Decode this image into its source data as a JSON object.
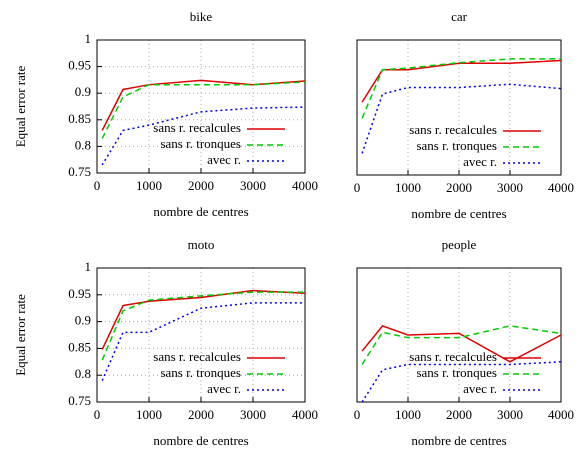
{
  "chart_data": [
    {
      "type": "line",
      "title": "bike",
      "xlabel": "nombre de centres",
      "ylabel": "Equal error rate",
      "x": [
        100,
        500,
        1000,
        2000,
        3000,
        4000
      ],
      "xlim": [
        0,
        4000
      ],
      "xticks": [
        0,
        1000,
        2000,
        3000,
        4000
      ],
      "ylim": [
        0.75,
        1
      ],
      "yticks": [
        0.75,
        0.8,
        0.85,
        0.9,
        0.95,
        1
      ],
      "grid": true,
      "legend": "lower right",
      "series": [
        {
          "name": "sans r. recalcules",
          "color": "#e00000",
          "style": "solid",
          "values": [
            0.83,
            0.907,
            0.916,
            0.924,
            0.916,
            0.923
          ]
        },
        {
          "name": "sans r. tronques",
          "color": "#00cc00",
          "style": "dashed",
          "values": [
            0.815,
            0.893,
            0.916,
            0.916,
            0.916,
            0.921
          ]
        },
        {
          "name": "avec r.",
          "color": "#0000ee",
          "style": "dotted",
          "values": [
            0.765,
            0.83,
            0.84,
            0.865,
            0.872,
            0.874
          ]
        }
      ]
    },
    {
      "type": "line",
      "title": "car",
      "xlabel": "nombre de centres",
      "x": [
        100,
        500,
        1000,
        2000,
        3000,
        4000
      ],
      "xlim": [
        0,
        4000
      ],
      "xticks": [
        0,
        1000,
        2000,
        3000,
        4000
      ],
      "ylim": [
        0.75,
        1
      ],
      "grid": true,
      "legend": "lower right",
      "series": [
        {
          "name": "sans r. recalcules",
          "color": "#e00000",
          "style": "solid",
          "values": [
            0.885,
            0.945,
            0.945,
            0.957,
            0.957,
            0.962
          ]
        },
        {
          "name": "sans r. tronques",
          "color": "#00cc00",
          "style": "dashed",
          "values": [
            0.855,
            0.945,
            0.948,
            0.958,
            0.965,
            0.965
          ]
        },
        {
          "name": "avec r.",
          "color": "#0000ee",
          "style": "dotted",
          "values": [
            0.79,
            0.9,
            0.912,
            0.912,
            0.918,
            0.91
          ]
        }
      ]
    },
    {
      "type": "line",
      "title": "moto",
      "xlabel": "nombre de centres",
      "ylabel": "Equal error rate",
      "x": [
        100,
        500,
        1000,
        2000,
        3000,
        4000
      ],
      "xlim": [
        0,
        4000
      ],
      "xticks": [
        0,
        1000,
        2000,
        3000,
        4000
      ],
      "ylim": [
        0.75,
        1
      ],
      "yticks": [
        0.75,
        0.8,
        0.85,
        0.9,
        0.95,
        1
      ],
      "grid": true,
      "legend": "lower right",
      "series": [
        {
          "name": "sans r. recalcules",
          "color": "#e00000",
          "style": "solid",
          "values": [
            0.848,
            0.93,
            0.938,
            0.945,
            0.958,
            0.953
          ]
        },
        {
          "name": "sans r. tronques",
          "color": "#00cc00",
          "style": "dashed",
          "values": [
            0.828,
            0.92,
            0.94,
            0.948,
            0.955,
            0.955
          ]
        },
        {
          "name": "avec r.",
          "color": "#0000ee",
          "style": "dotted",
          "values": [
            0.79,
            0.88,
            0.88,
            0.925,
            0.935,
            0.935
          ]
        }
      ]
    },
    {
      "type": "line",
      "title": "people",
      "xlabel": "nombre de centres",
      "x": [
        100,
        500,
        1000,
        2000,
        3000,
        4000
      ],
      "xlim": [
        0,
        4000
      ],
      "xticks": [
        0,
        1000,
        2000,
        3000,
        4000
      ],
      "ylim": [
        0.75,
        1
      ],
      "grid": true,
      "legend": "lower right",
      "series": [
        {
          "name": "sans r. recalcules",
          "color": "#e00000",
          "style": "solid",
          "values": [
            0.845,
            0.892,
            0.875,
            0.878,
            0.825,
            0.875
          ]
        },
        {
          "name": "sans r. tronques",
          "color": "#00cc00",
          "style": "dashed",
          "values": [
            0.82,
            0.88,
            0.87,
            0.87,
            0.892,
            0.878
          ]
        },
        {
          "name": "avec r.",
          "color": "#0000ee",
          "style": "dotted",
          "values": [
            0.75,
            0.81,
            0.82,
            0.82,
            0.82,
            0.825
          ]
        }
      ]
    }
  ]
}
